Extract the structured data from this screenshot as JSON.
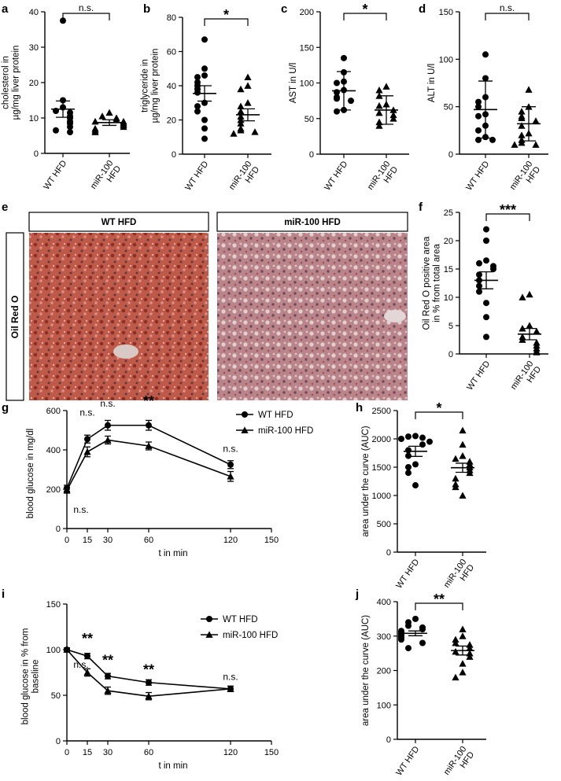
{
  "panels": {
    "a": {
      "letter": "a"
    },
    "b": {
      "letter": "b"
    },
    "c": {
      "letter": "c"
    },
    "d": {
      "letter": "d"
    },
    "e": {
      "letter": "e",
      "row_label": "Oil Red O",
      "titles": [
        "WT HFD",
        "miR-100 HFD"
      ]
    },
    "f": {
      "letter": "f"
    },
    "g": {
      "letter": "g"
    },
    "h": {
      "letter": "h"
    },
    "i": {
      "letter": "i"
    },
    "j": {
      "letter": "j"
    }
  },
  "colors": {
    "ink": "#000000",
    "tissue_wt": "#b54a3c",
    "tissue_mir": "#a9707a",
    "background": "#ffffff"
  },
  "chart_data": [
    {
      "id": "a",
      "type": "scatter",
      "ylabel": [
        "cholesterol in",
        "µg/mg liver protein"
      ],
      "ylim": [
        0,
        40
      ],
      "yticks": [
        0,
        10,
        20,
        30,
        40
      ],
      "categories": [
        [
          "WT HFD"
        ],
        [
          "miR-100",
          "HFD"
        ]
      ],
      "groups": [
        {
          "name": "WT HFD",
          "marker": "circle",
          "mean": 12.5,
          "sem": 2.3,
          "values": [
            37.5,
            15,
            13,
            12,
            11.5,
            10.5,
            10,
            9,
            8.5,
            7.5,
            6.5,
            6
          ]
        },
        {
          "name": "miR-100 HFD",
          "marker": "triangle",
          "mean": 8.7,
          "sem": 0.8,
          "values": [
            11.5,
            10.5,
            10,
            9.5,
            9,
            9,
            8.5,
            8,
            7.5,
            7,
            6.5,
            6
          ]
        }
      ],
      "significance": "n.s."
    },
    {
      "id": "b",
      "type": "scatter",
      "ylabel": [
        "triglyceride in",
        "µg/mg liver protein"
      ],
      "ylim": [
        0,
        80
      ],
      "yticks": [
        0,
        20,
        40,
        60,
        80
      ],
      "categories": [
        [
          "WT HFD"
        ],
        [
          "miR-100",
          "HFD"
        ]
      ],
      "groups": [
        {
          "name": "WT HFD",
          "marker": "circle",
          "mean": 35.5,
          "sem": 4.5,
          "values": [
            67,
            50,
            46,
            45,
            42,
            40,
            38,
            36,
            30,
            28,
            25,
            20,
            15,
            9
          ]
        },
        {
          "name": "miR-100 HFD",
          "marker": "triangle",
          "mean": 23,
          "sem": 3.5,
          "values": [
            45,
            40,
            38,
            30,
            28,
            25,
            22,
            20,
            18,
            15,
            14,
            13,
            12
          ]
        }
      ],
      "significance": "*"
    },
    {
      "id": "c",
      "type": "scatter",
      "ylabel": [
        "AST in U/l"
      ],
      "ylim": [
        0,
        200
      ],
      "yticks": [
        0,
        50,
        100,
        150,
        200
      ],
      "categories": [
        [
          "WT HFD"
        ],
        [
          "miR-100",
          "HFD"
        ]
      ],
      "groups": [
        {
          "name": "WT HFD",
          "marker": "circle",
          "mean": 89,
          "sem": 27,
          "values": [
            135,
            115,
            102,
            100,
            90,
            87,
            80,
            78,
            75,
            62,
            60
          ]
        },
        {
          "name": "miR-100 HFD",
          "marker": "triangle",
          "mean": 62,
          "sem": 20,
          "values": [
            95,
            90,
            82,
            70,
            68,
            62,
            58,
            55,
            50,
            45,
            40
          ]
        }
      ],
      "significance": "*"
    },
    {
      "id": "d",
      "type": "scatter",
      "ylabel": [
        "ALT in U/l"
      ],
      "ylim": [
        0,
        150
      ],
      "yticks": [
        0,
        50,
        100,
        150
      ],
      "categories": [
        [
          "WT HFD"
        ],
        [
          "miR-100",
          "HFD"
        ]
      ],
      "groups": [
        {
          "name": "WT HFD",
          "marker": "circle",
          "mean": 47,
          "sem": 30,
          "values": [
            105,
            80,
            60,
            55,
            50,
            42,
            40,
            30,
            25,
            18,
            15,
            15
          ]
        },
        {
          "name": "miR-100 HFD",
          "marker": "triangle",
          "mean": 32,
          "sem": 18,
          "values": [
            68,
            50,
            45,
            40,
            38,
            35,
            30,
            22,
            20,
            15,
            12,
            10,
            10
          ]
        }
      ],
      "significance": "n.s."
    },
    {
      "id": "f",
      "type": "scatter",
      "ylabel": [
        "Oil Red O positive area",
        "in % from total area"
      ],
      "ylim": [
        0,
        25
      ],
      "yticks": [
        0,
        5,
        10,
        15,
        20,
        25
      ],
      "categories": [
        [
          "WT HFD"
        ],
        [
          "miR-100",
          "HFD"
        ]
      ],
      "groups": [
        {
          "name": "WT HFD",
          "marker": "circle",
          "mean": 13,
          "sem": 1.5,
          "values": [
            22,
            20,
            16.5,
            16,
            15.5,
            15,
            14,
            13,
            12,
            11,
            9,
            6.5,
            3
          ]
        },
        {
          "name": "miR-100 HFD",
          "marker": "triangle",
          "mean": 3.5,
          "sem": 1,
          "values": [
            10.5,
            10,
            5,
            4.5,
            4,
            3,
            2.5,
            2,
            1.5,
            1,
            0.5,
            0.3
          ]
        }
      ],
      "significance": "***"
    },
    {
      "id": "g",
      "type": "line",
      "xlabel": "t in min",
      "ylabel": [
        "blood glucose in mg/dl"
      ],
      "xlim": [
        0,
        150
      ],
      "xticks": [
        0,
        15,
        30,
        60,
        120,
        150
      ],
      "ylim": [
        0,
        600
      ],
      "yticks": [
        0,
        200,
        400,
        600
      ],
      "x": [
        0,
        15,
        30,
        60,
        120
      ],
      "series": [
        {
          "name": "WT HFD",
          "marker": "circle",
          "values": [
            205,
            455,
            525,
            525,
            325
          ],
          "err": [
            15,
            20,
            25,
            25,
            20
          ]
        },
        {
          "name": "miR-100 HFD",
          "marker": "triangle",
          "values": [
            195,
            390,
            450,
            420,
            265
          ],
          "err": [
            15,
            25,
            20,
            20,
            25
          ]
        }
      ],
      "annotations": [
        {
          "x": 0,
          "y": 80,
          "text": "n.s.",
          "bold": false
        },
        {
          "x": 15,
          "y": 575,
          "text": "n.s.",
          "bold": false
        },
        {
          "x": 30,
          "y": 620,
          "text": "n.s.",
          "bold": false
        },
        {
          "x": 60,
          "y": 625,
          "text": "**",
          "bold": true
        },
        {
          "x": 120,
          "y": 390,
          "text": "n.s.",
          "bold": false
        }
      ],
      "legend": "top-right"
    },
    {
      "id": "h",
      "type": "scatter",
      "ylabel": [
        "area under the curve (AUC)"
      ],
      "ylim": [
        0,
        2500
      ],
      "yticks": [
        0,
        500,
        1000,
        1500,
        2000,
        2500
      ],
      "categories": [
        [
          "WT HFD"
        ],
        [
          "miR-100",
          "HFD"
        ]
      ],
      "groups": [
        {
          "name": "WT HFD",
          "marker": "circle",
          "mean": 1780,
          "sem": 90,
          "values": [
            2050,
            2040,
            2020,
            2000,
            1950,
            1900,
            1800,
            1700,
            1550,
            1500,
            1400,
            1180
          ]
        },
        {
          "name": "miR-100 HFD",
          "marker": "triangle",
          "mean": 1490,
          "sem": 80,
          "values": [
            2150,
            1900,
            1700,
            1650,
            1600,
            1550,
            1500,
            1450,
            1400,
            1300,
            1200,
            1150,
            1000
          ]
        }
      ],
      "significance": "*"
    },
    {
      "id": "i",
      "type": "line",
      "xlabel": "t in min",
      "ylabel": [
        "blood glucose in % from",
        "baseline"
      ],
      "xlim": [
        0,
        150
      ],
      "xticks": [
        0,
        15,
        30,
        60,
        120,
        150
      ],
      "ylim": [
        0,
        150
      ],
      "yticks": [
        0,
        50,
        100,
        150
      ],
      "x": [
        0,
        15,
        30,
        60,
        120
      ],
      "series": [
        {
          "name": "WT HFD",
          "marker": "circle",
          "values": [
            100,
            93,
            71,
            64,
            57
          ],
          "err": [
            2,
            3,
            3,
            3,
            3
          ]
        },
        {
          "name": "miR-100 HFD",
          "marker": "triangle",
          "values": [
            100,
            75,
            55,
            49,
            57
          ],
          "err": [
            2,
            4,
            4,
            4,
            3
          ]
        }
      ],
      "annotations": [
        {
          "x": 0,
          "y": 80,
          "text": "n.s.",
          "bold": false
        },
        {
          "x": 15,
          "y": 107,
          "text": "**",
          "bold": true
        },
        {
          "x": 30,
          "y": 83,
          "text": "**",
          "bold": true
        },
        {
          "x": 60,
          "y": 73,
          "text": "**",
          "bold": true
        },
        {
          "x": 120,
          "y": 67,
          "text": "n.s.",
          "bold": false
        }
      ],
      "legend": "top-right"
    },
    {
      "id": "j",
      "type": "scatter",
      "ylabel": [
        "area under the curve (AUC)"
      ],
      "ylim": [
        0,
        400
      ],
      "yticks": [
        0,
        100,
        200,
        300,
        400
      ],
      "categories": [
        [
          "WT HFD"
        ],
        [
          "miR-100",
          "HFD"
        ]
      ],
      "groups": [
        {
          "name": "WT HFD",
          "marker": "circle",
          "mean": 308,
          "sem": 7,
          "values": [
            350,
            340,
            330,
            325,
            320,
            315,
            310,
            305,
            300,
            295,
            290,
            280,
            265
          ]
        },
        {
          "name": "miR-100 HFD",
          "marker": "triangle",
          "mean": 258,
          "sem": 13,
          "values": [
            320,
            300,
            290,
            280,
            275,
            265,
            255,
            250,
            240,
            220,
            195,
            180
          ]
        }
      ],
      "significance": "**"
    }
  ]
}
